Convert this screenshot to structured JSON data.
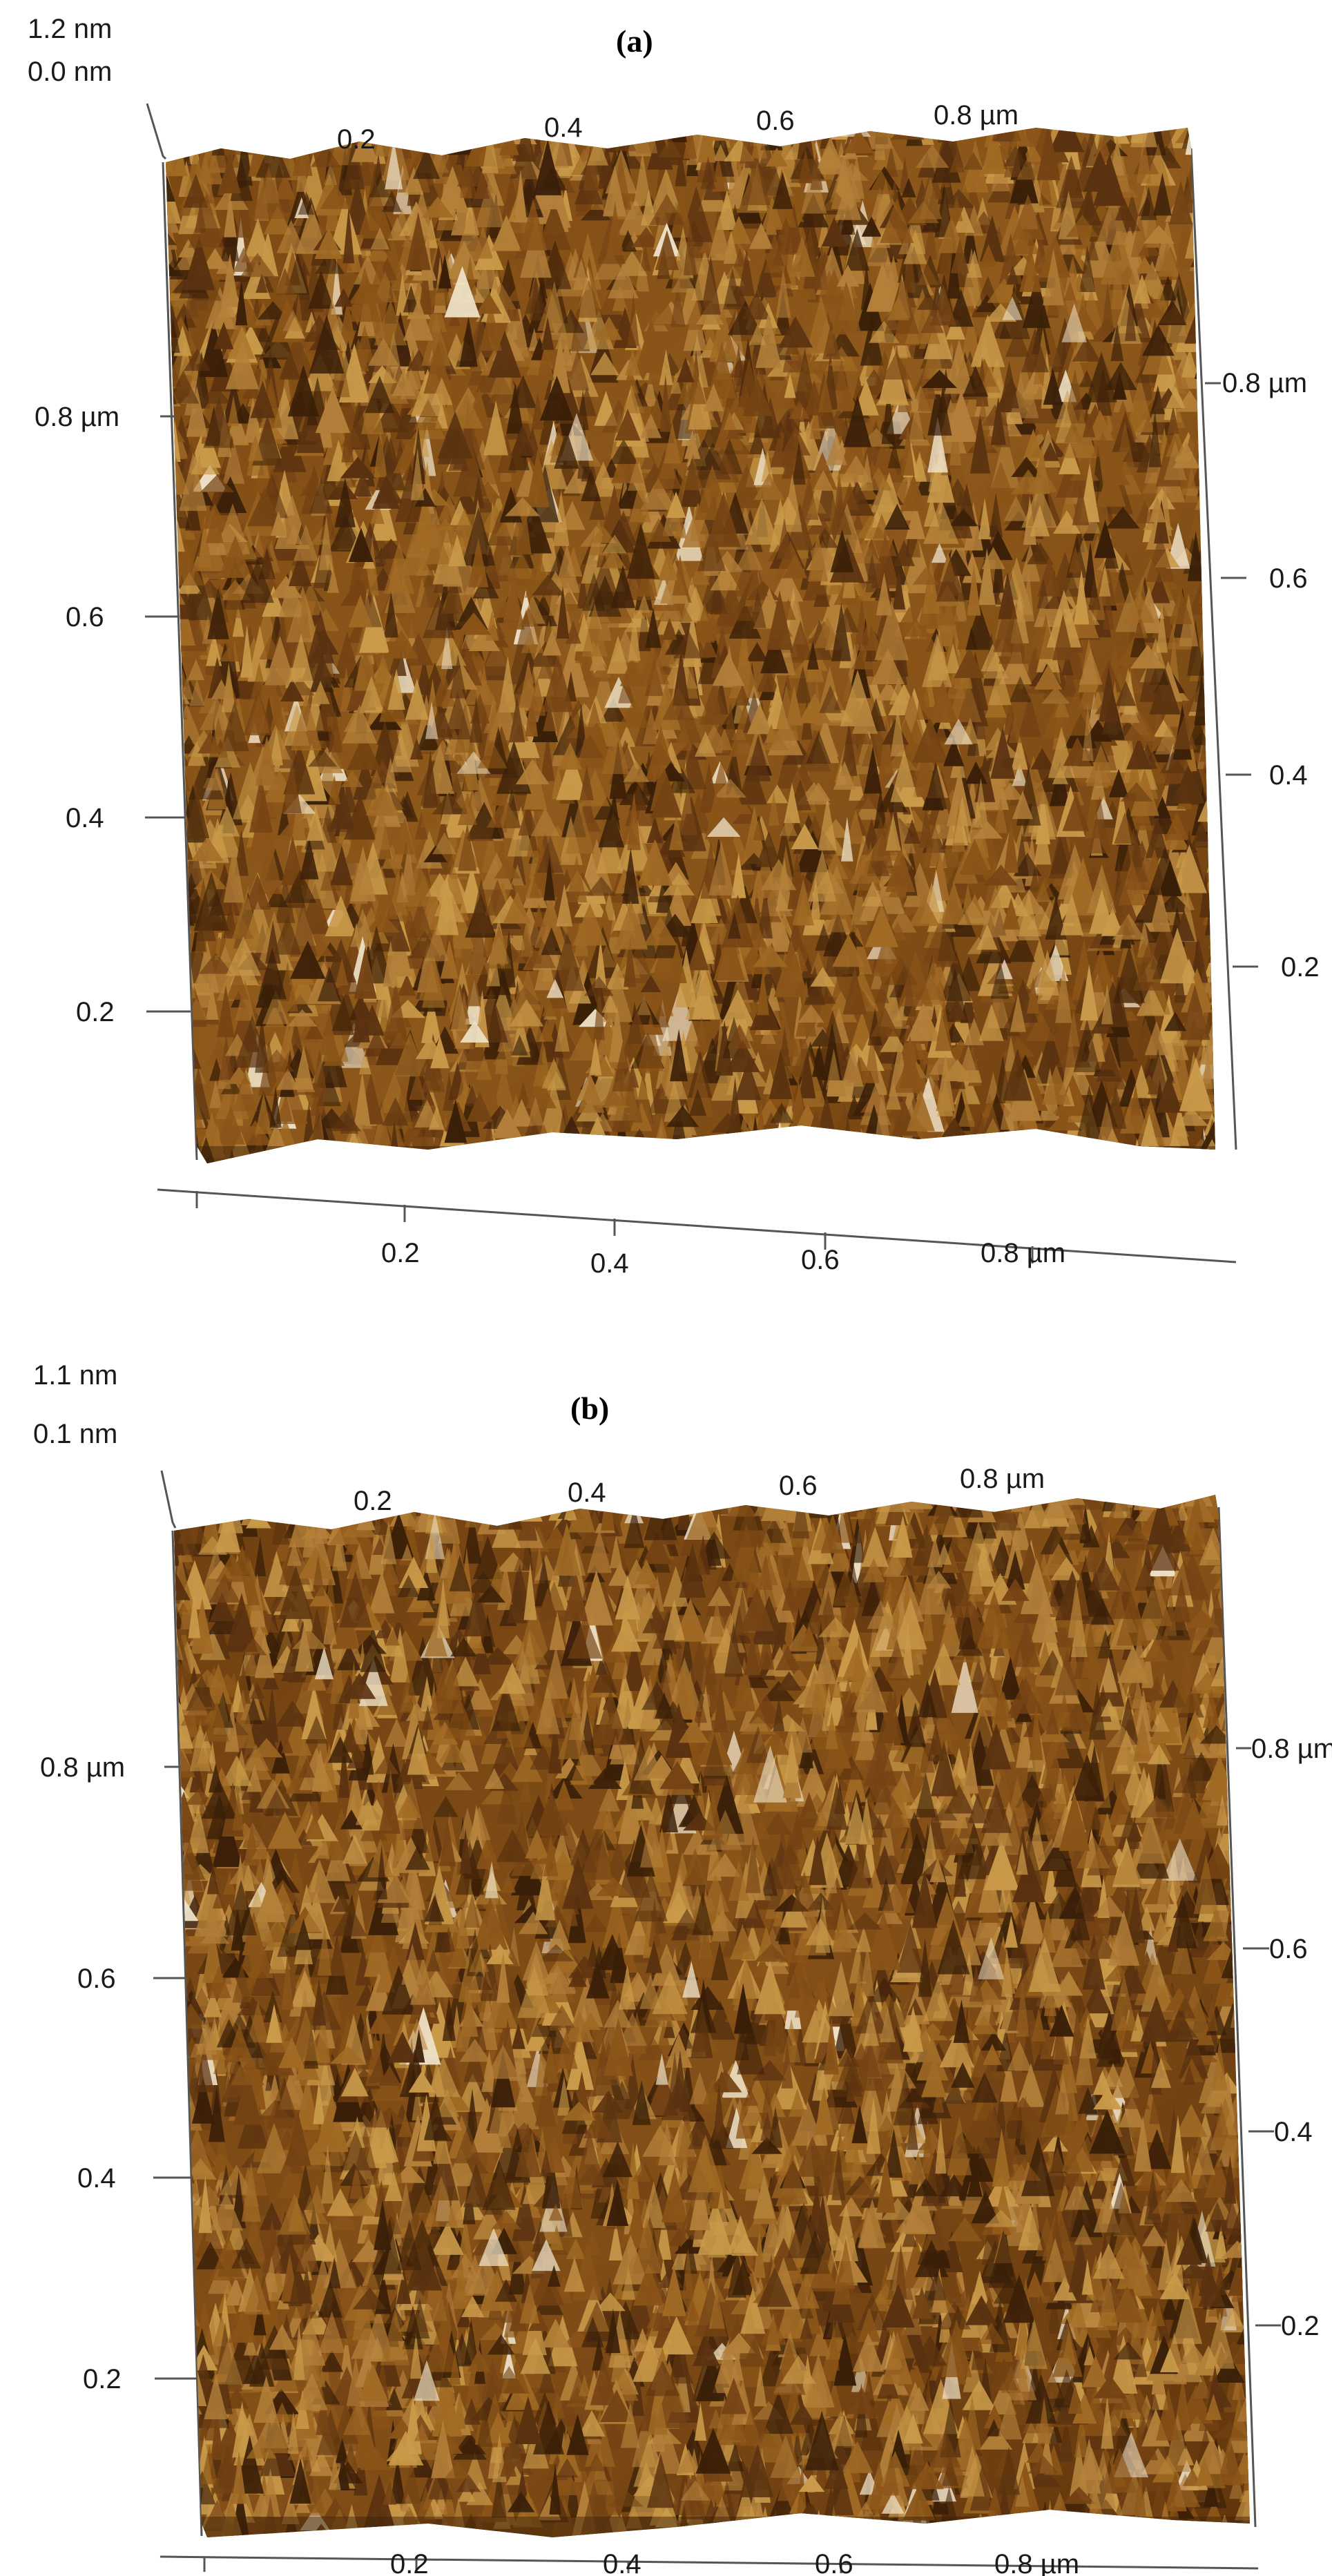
{
  "panels": [
    {
      "id": "a",
      "title": "(a)",
      "z_max": "1.2 nm",
      "z_min": "0.0 nm",
      "top_ticks": [
        "0.2",
        "0.4",
        "0.6",
        "0.8 µm"
      ],
      "left_ticks": [
        "0.8 µm",
        "0.6",
        "0.4",
        "0.2"
      ],
      "right_ticks": [
        "0.8 µm",
        "0.6",
        "0.4",
        "0.2"
      ],
      "bottom_ticks": [
        "0.2",
        "0.4",
        "0.6",
        "0.8 µm"
      ]
    },
    {
      "id": "b",
      "title": "(b)",
      "z_max": "1.1 nm",
      "z_min": "0.1 nm",
      "top_ticks": [
        "0.2",
        "0.4",
        "0.6",
        "0.8 µm"
      ],
      "left_ticks": [
        "0.8 µm",
        "0.6",
        "0.4",
        "0.2"
      ],
      "right_ticks": [
        "0.8 µm",
        "0.6",
        "0.4",
        "0.2"
      ],
      "bottom_ticks": [
        "0.2",
        "0.4",
        "0.6",
        "0.8 µm"
      ]
    }
  ],
  "colors": {
    "surface_dark": "#3a1f08",
    "surface_mid": "#8a5418",
    "surface_light": "#c99a4a",
    "surface_highlight": "#efe2c8"
  }
}
